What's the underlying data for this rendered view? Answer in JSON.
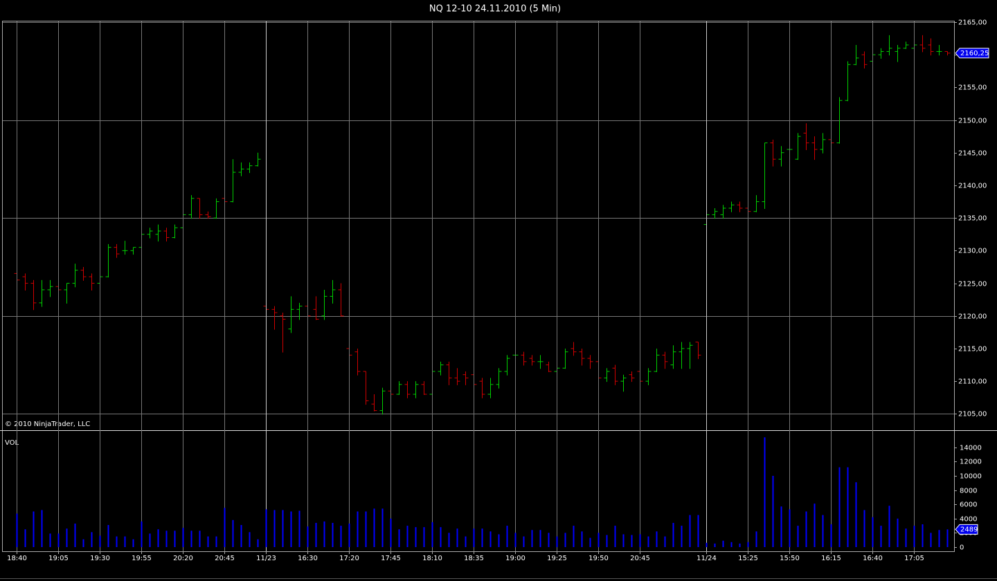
{
  "chart_data": [
    {
      "type": "ohlc",
      "title": "NQ 12-10  24.11.2010 (5 Min)",
      "annotation": "© 2010 NinjaTrader, LLC",
      "up_color": "#00d000",
      "down_color": "#d00000",
      "open": [
        2126.5,
        2126,
        2125,
        2122,
        2124,
        2124.5,
        2124,
        2125,
        2127,
        2126,
        2125,
        2126,
        2130.5,
        2130,
        2130,
        2130.5,
        2132.5,
        2132.5,
        2133,
        2132,
        2133.5,
        2135.5,
        2138,
        2135.5,
        2135,
        2138,
        2137.5,
        2142,
        2142.5,
        2143,
        2121.5,
        2121,
        2120,
        2118,
        2121,
        2121.5,
        2121,
        2120,
        2123,
        2124,
        2115,
        2114.5,
        2111.5,
        2106.5,
        2105.5,
        2108.5,
        2108,
        2109.5,
        2108,
        2109.5,
        2108,
        2111.5,
        2112.5,
        2110.5,
        2111,
        2111,
        2110,
        2108,
        2109.5,
        2111.5,
        2114,
        2114,
        2113.5,
        2113,
        2112.5,
        2111.5,
        2112,
        2115,
        2114.5,
        2113.5,
        2113,
        2110.5,
        2112,
        2110,
        2111,
        2111.5,
        2110,
        2111.5,
        2114,
        2112.5,
        2114.5,
        2115,
        2116,
        2134,
        2135.5,
        2135.5,
        2136.5,
        2137,
        2136.5,
        2136,
        2137.5,
        2146.5,
        2144,
        2145.5,
        2144,
        2148,
        2146.5,
        2145.5,
        2147,
        2146.5,
        2153,
        2158.5,
        2160,
        2159,
        2160,
        2160.5,
        2160.5,
        2161,
        2161,
        2161.5,
        2161.5,
        2160.5,
        2160.5
      ],
      "high": [
        2127,
        2126.5,
        2125.5,
        2125.5,
        2125.5,
        2125,
        2125,
        2128,
        2127.5,
        2126.5,
        2126,
        2131,
        2131,
        2131.5,
        2130.5,
        2133.5,
        2133.5,
        2134,
        2133.5,
        2134,
        2136,
        2138.5,
        2138,
        2136,
        2138,
        2138.5,
        2144,
        2143.5,
        2143.5,
        2145,
        2122,
        2121.5,
        2120.5,
        2123,
        2122,
        2122,
        2123,
        2124,
        2125.5,
        2125,
        2115.5,
        2115,
        2111.5,
        2108,
        2109,
        2109,
        2110,
        2110,
        2110,
        2110,
        2112,
        2113,
        2113,
        2112,
        2111.5,
        2112,
        2110.5,
        2110.5,
        2112,
        2114,
        2114.5,
        2114.5,
        2114,
        2114,
        2113,
        2112.5,
        2115,
        2116,
        2115,
        2114,
        2113.5,
        2112,
        2112.5,
        2111,
        2111.5,
        2112,
        2112,
        2115,
        2114.5,
        2115.5,
        2116,
        2116,
        2116,
        2136.5,
        2136.5,
        2137,
        2137.5,
        2137.5,
        2137,
        2138.5,
        2146.5,
        2147,
        2146,
        2146,
        2148,
        2149.5,
        2147.5,
        2148,
        2147.5,
        2153.5,
        2159,
        2161.5,
        2160.5,
        2160.5,
        2161,
        2163,
        2161.5,
        2162,
        2161.5,
        2163,
        2162.5,
        2161.5,
        2160.5
      ],
      "low": [
        2123,
        2124,
        2121,
        2121.5,
        2123,
        2123.5,
        2122,
        2124.5,
        2125.5,
        2124,
        2124.5,
        2126,
        2129,
        2129.5,
        2129.5,
        2130,
        2132,
        2131.5,
        2131.5,
        2132,
        2133,
        2135,
        2135,
        2135,
        2135,
        2137,
        2137.5,
        2141.5,
        2142,
        2143,
        2121,
        2118,
        2114.5,
        2117.5,
        2119.5,
        2119,
        2119.5,
        2119.5,
        2122,
        2120,
        2113.5,
        2111,
        2106.5,
        2105.5,
        2105,
        2107.5,
        2108,
        2107.5,
        2107.5,
        2108,
        2106.5,
        2111,
        2109.5,
        2109.5,
        2109.5,
        2109,
        2107.5,
        2107.5,
        2109,
        2111,
        2113.5,
        2112.5,
        2112.5,
        2112,
        2111.5,
        2111,
        2112,
        2114,
        2112.5,
        2112,
        2110.5,
        2110,
        2109.5,
        2108.5,
        2110,
        2109.5,
        2109.5,
        2111.5,
        2112,
        2112,
        2112,
        2112,
        2113.5,
        2133.5,
        2135,
        2135,
        2136,
        2136,
        2135.5,
        2136,
        2136.5,
        2143,
        2143,
        2145,
        2144,
        2145.5,
        2144,
        2145,
        2146,
        2146.5,
        2153,
        2158.5,
        2158,
        2158.5,
        2159.5,
        2160,
        2159,
        2161,
        2159.5,
        2160.5,
        2160,
        2160,
        2160
      ],
      "close": [
        2125.5,
        2125,
        2122,
        2124,
        2124.5,
        2124,
        2125,
        2127,
        2126,
        2125,
        2126,
        2130.5,
        2129.5,
        2130,
        2130.5,
        2132.5,
        2133,
        2133,
        2132,
        2133.5,
        2135.5,
        2138,
        2135.5,
        2135.2,
        2137.5,
        2137.5,
        2142,
        2142.5,
        2143,
        2144,
        2121,
        2120.5,
        2119.5,
        2121,
        2121.5,
        2120,
        2119.5,
        2123,
        2124,
        2120,
        2114,
        2111.5,
        2107,
        2105.5,
        2108.5,
        2108,
        2109.5,
        2108,
        2109.5,
        2108,
        2111.5,
        2112.5,
        2110.5,
        2110,
        2110.5,
        2109.5,
        2108,
        2109.5,
        2111.5,
        2113.5,
        2114,
        2113,
        2113,
        2113,
        2111.5,
        2112,
        2114.5,
        2114.5,
        2113.5,
        2113,
        2110.5,
        2111.5,
        2110,
        2110.5,
        2110.5,
        2110,
        2111.5,
        2114,
        2113,
        2114.5,
        2115,
        2115.5,
        2114,
        2135.5,
        2136,
        2136.5,
        2137,
        2136.5,
        2136,
        2137.5,
        2146.5,
        2144,
        2145,
        2145.5,
        2147.5,
        2146.5,
        2145.5,
        2147,
        2146.5,
        2153,
        2158.5,
        2159.5,
        2158.5,
        2160,
        2160.5,
        2161,
        2161,
        2161.5,
        2161.5,
        2161,
        2160.5,
        2160.5,
        2160.25
      ],
      "ylim": [
        2102.6,
        2165.1
      ],
      "yticks": [
        {
          "value": 2105,
          "label": "2105,00"
        },
        {
          "value": 2110,
          "label": "2110,00"
        },
        {
          "value": 2115,
          "label": "2115,00"
        },
        {
          "value": 2120,
          "label": "2120,00"
        },
        {
          "value": 2125,
          "label": "2125,00"
        },
        {
          "value": 2130,
          "label": "2130,00"
        },
        {
          "value": 2135,
          "label": "2135,00"
        },
        {
          "value": 2140,
          "label": "2140,00"
        },
        {
          "value": 2145,
          "label": "2145,00"
        },
        {
          "value": 2150,
          "label": "2150,00"
        },
        {
          "value": 2155,
          "label": "2155,00"
        },
        {
          "value": 2160,
          "label": "2160,00"
        },
        {
          "value": 2165,
          "label": "2165,00"
        }
      ],
      "last_price": {
        "value": 2160.25,
        "label": "2160,25"
      }
    },
    {
      "type": "bar",
      "label": "VOL",
      "color": "#0000ff",
      "categories": [
        "18:40",
        null,
        null,
        null,
        null,
        "19:05",
        null,
        null,
        null,
        null,
        "19:30",
        null,
        null,
        null,
        null,
        "19:55",
        null,
        null,
        null,
        null,
        "20:20",
        null,
        null,
        null,
        null,
        "20:45",
        null,
        null,
        null,
        null,
        "11/23",
        null,
        null,
        null,
        null,
        "16:30",
        null,
        null,
        null,
        null,
        "17:20",
        null,
        null,
        null,
        null,
        "17:45",
        null,
        null,
        null,
        null,
        "18:10",
        null,
        null,
        null,
        null,
        "18:35",
        null,
        null,
        null,
        null,
        "19:00",
        null,
        null,
        null,
        null,
        "19:25",
        null,
        null,
        null,
        null,
        "19:50",
        null,
        null,
        null,
        null,
        "20:45",
        null,
        null,
        null,
        null,
        null,
        null,
        null,
        "11/24",
        null,
        null,
        null,
        null,
        "15:25",
        null,
        null,
        null,
        null,
        "15:50",
        null,
        null,
        null,
        null,
        "16:15",
        null,
        null,
        null,
        null,
        "16:40",
        null,
        null,
        null,
        null,
        "17:05",
        null,
        null,
        null,
        null
      ],
      "values": [
        4700,
        2500,
        5000,
        5200,
        1900,
        1900,
        2600,
        3300,
        1100,
        2100,
        1600,
        3100,
        1500,
        1500,
        1100,
        3600,
        1900,
        2500,
        2300,
        2300,
        2700,
        2300,
        2300,
        1500,
        1500,
        5500,
        3800,
        3100,
        2100,
        1100,
        5300,
        5200,
        5200,
        5000,
        5100,
        2900,
        3400,
        3600,
        3400,
        3000,
        3300,
        5000,
        5000,
        5400,
        5400,
        4000,
        2500,
        3000,
        2800,
        2800,
        3500,
        2800,
        2000,
        2600,
        1500,
        2600,
        2600,
        2200,
        1800,
        3000,
        2000,
        1500,
        2400,
        2400,
        2000,
        1500,
        2000,
        3000,
        2200,
        1300,
        2000,
        1700,
        3000,
        1800,
        1700,
        1800,
        1500,
        2200,
        1500,
        3400,
        3000,
        4500,
        4500,
        600,
        500,
        900,
        700,
        500,
        700,
        2200,
        15400,
        10000,
        5700,
        5300,
        3000,
        5000,
        6100,
        4500,
        3200,
        11200,
        11200,
        9100,
        5200,
        4200,
        3000,
        5800,
        4000,
        2600,
        3000,
        3200,
        2000,
        2400,
        2489
      ],
      "ylim": [
        0,
        16300
      ],
      "yticks": [
        0,
        2000,
        4000,
        6000,
        8000,
        10000,
        12000,
        14000
      ],
      "last_value": 2489
    }
  ]
}
